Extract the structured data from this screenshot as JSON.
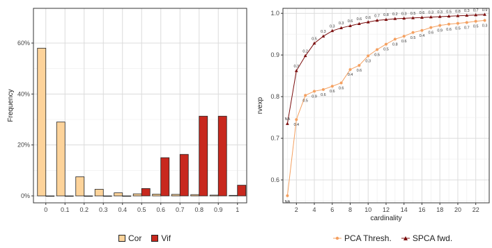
{
  "colors": {
    "cor": "#fdd39a",
    "vif": "#c8281e",
    "pca": "#f4a060",
    "spca": "#7a0c0c",
    "grid": "#dcdcdc",
    "panel_border": "#333333"
  },
  "chart_data": [
    {
      "type": "bar",
      "xlabel": "",
      "ylabel": "Frequency",
      "categories": [
        "0",
        "0.1",
        "0.2",
        "0.3",
        "0.4",
        "0.5",
        "0.6",
        "0.7",
        "0.8",
        "0.9",
        "1"
      ],
      "series": [
        {
          "name": "Cor",
          "values": [
            58,
            29,
            7.5,
            2.6,
            1.2,
            0.8,
            0.7,
            0.6,
            0.5,
            0.3,
            0.2
          ]
        },
        {
          "name": "Vif",
          "values": [
            0,
            0,
            0,
            0,
            0,
            2.9,
            15,
            16.3,
            31.3,
            31.3,
            4.2
          ]
        }
      ],
      "yticks": [
        "0%",
        "20%",
        "40%",
        "60%"
      ],
      "ylim": [
        0,
        60
      ],
      "grid": true,
      "legend_position": "bottom"
    },
    {
      "type": "line",
      "xlabel": "cardinality",
      "ylabel": "rvexp",
      "xticks": [
        "2",
        "4",
        "6",
        "8",
        "10",
        "12",
        "14",
        "16",
        "18",
        "20",
        "22"
      ],
      "yticks": [
        "0.6",
        "0.7",
        "0.8",
        "0.9",
        "1.0"
      ],
      "xlim": [
        0.5,
        23.5
      ],
      "ylim": [
        0.545,
        1.012
      ],
      "grid": true,
      "legend_position": "bottom",
      "x": [
        1,
        2,
        3,
        4,
        5,
        6,
        7,
        8,
        9,
        10,
        11,
        12,
        13,
        14,
        15,
        16,
        17,
        18,
        19,
        20,
        21,
        22,
        23
      ],
      "series": [
        {
          "name": "PCA Thresh.",
          "marker": "circle",
          "values": [
            0.562,
            0.745,
            0.803,
            0.813,
            0.817,
            0.825,
            0.833,
            0.865,
            0.875,
            0.898,
            0.913,
            0.926,
            0.938,
            0.945,
            0.954,
            0.959,
            0.966,
            0.971,
            0.974,
            0.976,
            0.978,
            0.981,
            0.983
          ],
          "labels": [
            "NA",
            "0.4",
            "0.5",
            "0.9",
            "0.6",
            "0.6",
            "0.6",
            "0.4",
            "0.6",
            "0.3",
            "0.5",
            "0.5",
            "0.8",
            "0.6",
            "0.5",
            "0.4",
            "0.6",
            "0.9",
            "0.6",
            "0.5",
            "0.7",
            "0.5",
            "0.3"
          ]
        },
        {
          "name": "SPCA fwd.",
          "marker": "triangle",
          "values": [
            0.735,
            0.862,
            0.898,
            0.928,
            0.945,
            0.958,
            0.965,
            0.97,
            0.975,
            0.979,
            0.983,
            0.985,
            0.987,
            0.988,
            0.989,
            0.99,
            0.991,
            0.992,
            0.993,
            0.994,
            0.995,
            0.996,
            0.997
          ],
          "labels": [
            "NA",
            "0.3",
            "0.2",
            "0.5",
            "0.3",
            "0.3",
            "0.3",
            "0.6",
            "0.6",
            "0.6",
            "0.7",
            "0.8",
            "0.2",
            "0.3",
            "0.5",
            "0.6",
            "0.3",
            "0.3",
            "0.5",
            "0.8",
            "0.3",
            "0.7",
            "0.9"
          ]
        }
      ]
    }
  ]
}
